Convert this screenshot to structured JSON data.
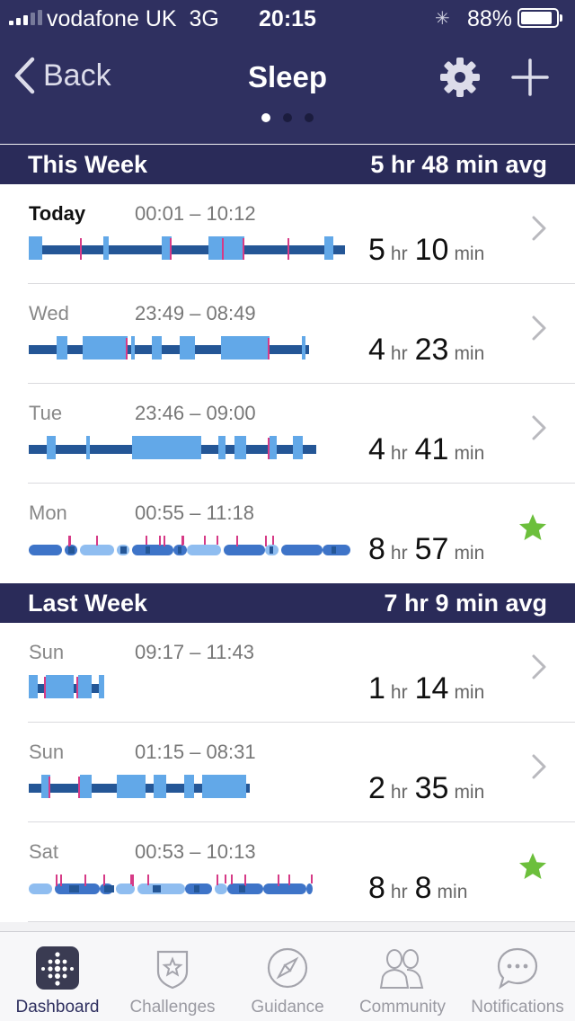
{
  "status_bar": {
    "carrier": "vodafone UK",
    "network": "3G",
    "time": "20:15",
    "battery": "88%"
  },
  "nav": {
    "back_label": "Back",
    "title": "Sleep",
    "page_dots": 3,
    "active_dot": 0
  },
  "this_week": {
    "title": "This Week",
    "average": "5 hr 48 min avg",
    "entries": [
      {
        "day": "Today",
        "range": "00:01 – 10:12",
        "hr": "5",
        "min": "10",
        "trailing": "chevron",
        "style": "stages"
      },
      {
        "day": "Wed",
        "range": "23:49 – 08:49",
        "hr": "4",
        "min": "23",
        "trailing": "chevron",
        "style": "stages"
      },
      {
        "day": "Tue",
        "range": "23:46 – 09:00",
        "hr": "4",
        "min": "41",
        "trailing": "chevron",
        "style": "stages"
      },
      {
        "day": "Mon",
        "range": "00:55 – 11:18",
        "hr": "8",
        "min": "57",
        "trailing": "star",
        "style": "pattern"
      }
    ]
  },
  "last_week": {
    "title": "Last Week",
    "average": "7 hr 9 min avg",
    "entries": [
      {
        "day": "Sun",
        "range": "09:17 – 11:43",
        "hr": "1",
        "min": "14",
        "trailing": "chevron",
        "style": "stages"
      },
      {
        "day": "Sun",
        "range": "01:15 – 08:31",
        "hr": "2",
        "min": "35",
        "trailing": "chevron",
        "style": "stages"
      },
      {
        "day": "Sat",
        "range": "00:53 – 10:13",
        "hr": "8",
        "min": "8",
        "trailing": "star",
        "style": "pattern"
      }
    ]
  },
  "units": {
    "hr": "hr",
    "min": "min"
  },
  "tabs": [
    {
      "label": "Dashboard",
      "icon": "dashboard-icon",
      "active": true
    },
    {
      "label": "Challenges",
      "icon": "challenges-badge-icon",
      "active": false
    },
    {
      "label": "Guidance",
      "icon": "compass-icon",
      "active": false
    },
    {
      "label": "Community",
      "icon": "people-icon",
      "active": false
    },
    {
      "label": "Notifications",
      "icon": "chat-bubble-icon",
      "active": false
    }
  ],
  "colors": {
    "header_bg": "#2f3060",
    "section_bg": "#2a2b59",
    "deep": "#245696",
    "light": "#62a8e8",
    "rem": "#3e74c8",
    "awake": "#d63a86",
    "pale": "#8fbdf0",
    "star": "#6cbf3c"
  }
}
